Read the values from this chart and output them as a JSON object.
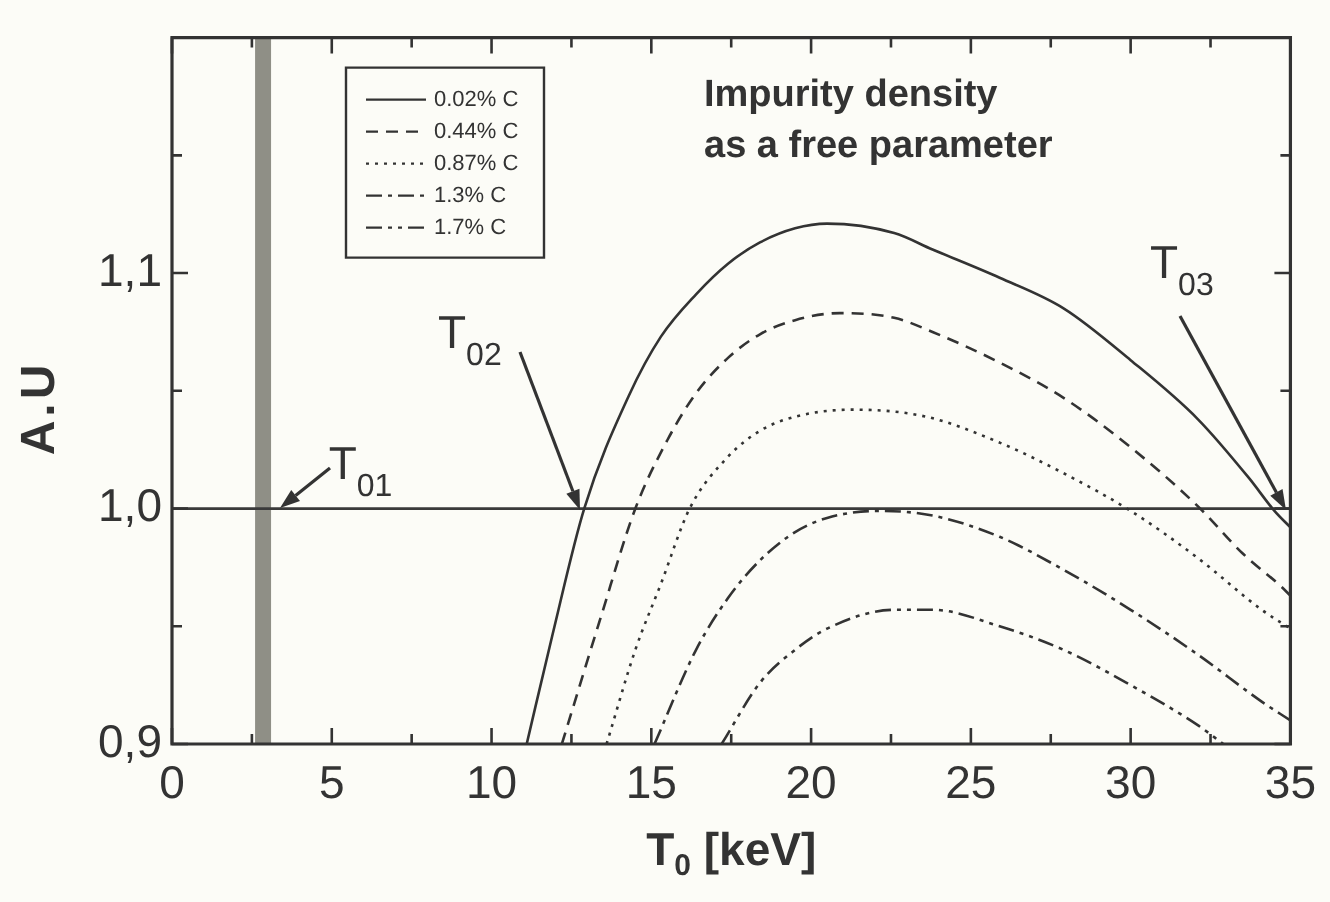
{
  "chart_data": {
    "type": "line",
    "xlabel": "T$_{0}$ [keV]",
    "ylabel": "A.U",
    "annotations": [
      "Impurity density\nas a free parameter",
      {
        "text": "T$_{01}$",
        "x": 3.4,
        "y": 1.0
      },
      "T$_{02}$",
      "T$_{03}$"
    ],
    "xlim": [
      0,
      35
    ],
    "xticks": [
      0,
      {
        "value": 2.5,
        "label": null
      },
      5,
      {
        "value": 7.5,
        "label": null
      },
      10,
      {
        "value": 12.5,
        "label": null
      },
      15,
      {
        "value": 17.5,
        "label": null
      },
      20,
      {
        "value": 22.5,
        "label": null
      },
      25,
      {
        "value": 27.5,
        "label": null
      },
      30,
      {
        "value": 32.5,
        "label": null
      },
      35
    ],
    "ylim": [
      0.9,
      1.2
    ],
    "yticks": [
      {
        "value": 0.9,
        "label": "0,9"
      },
      {
        "value": 0.95,
        "label": null
      },
      {
        "value": 1.0,
        "label": "1,0"
      },
      {
        "value": 1.05,
        "label": null
      },
      {
        "value": 1.1,
        "label": "1,1"
      },
      {
        "value": 1.15,
        "label": null
      }
    ],
    "series": [
      {
        "name": "0.02% C",
        "color": "#333333",
        "line_style": "solid",
        "x": [
          11.1,
          11.9,
          12.9,
          14.3,
          15.3,
          16.4,
          17.4,
          18.4,
          19.5,
          20.5,
          22.6,
          23.8,
          25.9,
          27.9,
          30,
          32.1,
          33.7,
          34.5,
          35
        ],
        "values": [
          0.9,
          0.946,
          1.0,
          1.048,
          1.073,
          1.091,
          1.104,
          1.113,
          1.119,
          1.121,
          1.117,
          1.11,
          1.098,
          1.085,
          1.063,
          1.038,
          1.013,
          0.999,
          0.992
        ]
      },
      {
        "name": "0.44% C",
        "color": "#333333",
        "line_style": "dashed",
        "x": [
          12.2,
          13.4,
          14.5,
          15.5,
          16.4,
          17.4,
          18.4,
          19.5,
          20.9,
          22.6,
          23.8,
          25.9,
          27.9,
          30,
          32.1,
          33.5,
          34.7,
          35
        ],
        "values": [
          0.9,
          0.953,
          1.0,
          1.029,
          1.049,
          1.064,
          1.074,
          1.08,
          1.083,
          1.081,
          1.075,
          1.062,
          1.047,
          1.026,
          1.001,
          0.981,
          0.967,
          0.963
        ]
      },
      {
        "name": "0.87% C",
        "color": "#333333",
        "line_style": "dotted",
        "x": [
          13.6,
          14.5,
          15.3,
          16.2,
          17.4,
          18.4,
          19.5,
          21.3,
          23.6,
          25.9,
          27.9,
          30,
          32.1,
          34.1,
          35
        ],
        "values": [
          0.9,
          0.94,
          0.968,
          1.0,
          1.022,
          1.033,
          1.039,
          1.042,
          1.039,
          1.028,
          1.015,
          0.999,
          0.979,
          0.957,
          0.949
        ]
      },
      {
        "name": "1.3% C",
        "color": "#333333",
        "line_style": "dashdot",
        "x": [
          15.1,
          16.4,
          17.4,
          18.4,
          19.5,
          20.5,
          22.1,
          23.8,
          25.9,
          27.9,
          30,
          32.1,
          34.1,
          35
        ],
        "values": [
          0.9,
          0.94,
          0.962,
          0.978,
          0.99,
          0.996,
          0.999,
          0.997,
          0.988,
          0.974,
          0.957,
          0.938,
          0.918,
          0.91
        ]
      },
      {
        "name": "1.7% C",
        "color": "#333333",
        "line_style": "dashdotdot",
        "x": [
          17.2,
          18.4,
          19.5,
          20.5,
          22.6,
          23.8,
          25.9,
          27.9,
          30,
          32.1,
          32.9
        ],
        "values": [
          0.9,
          0.926,
          0.94,
          0.949,
          0.957,
          0.957,
          0.95,
          0.94,
          0.925,
          0.908,
          0.9
        ]
      }
    ],
    "ref_lines": [
      {
        "axis": "y",
        "value": 1.0,
        "color": "#3a3a3a"
      }
    ],
    "bands": [
      {
        "axis": "x",
        "from": 2.6,
        "to": 3.1,
        "color": "#8f8f86"
      }
    ],
    "legend": "top left",
    "grid": false,
    "marker": "none"
  }
}
